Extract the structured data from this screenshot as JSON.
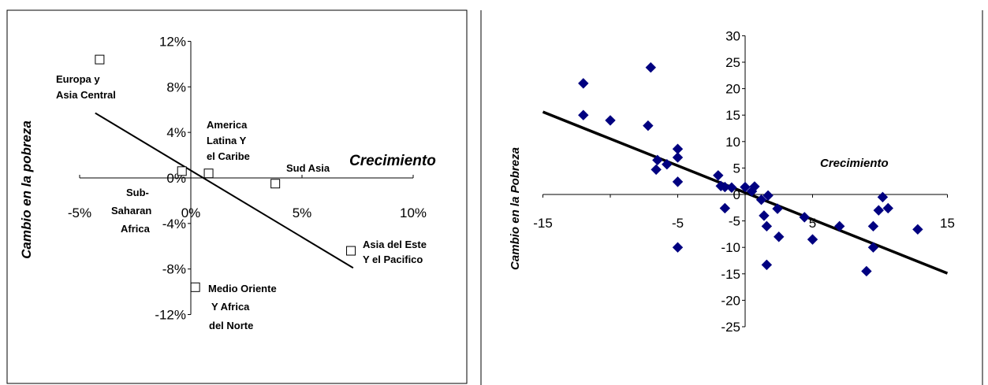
{
  "chart_data": [
    {
      "type": "scatter",
      "title": "",
      "xlabel": "Crecimiento",
      "ylabel": "Cambio en la pobreza",
      "xlim": [
        -5,
        10
      ],
      "ylim": [
        -12,
        12
      ],
      "x_ticks": [
        "-5%",
        "0%",
        "5%",
        "10%"
      ],
      "y_ticks": [
        "12%",
        "8%",
        "4%",
        "0%",
        "-4%",
        "-8%",
        "-12%"
      ],
      "points": [
        {
          "label": "Europa y Asia Central",
          "x": -4.1,
          "y": 10.4
        },
        {
          "label": "Sub-Saharan Africa",
          "x": -0.4,
          "y": 0.6
        },
        {
          "label": "America Latina Y el Caribe",
          "x": 0.8,
          "y": 0.4
        },
        {
          "label": "Sud Asia",
          "x": 3.8,
          "y": -0.5
        },
        {
          "label": "Asia del Este Y el Pacifico",
          "x": 7.2,
          "y": -6.4
        },
        {
          "label": "Medio Oriente Y Africa del Norte",
          "x": 0.2,
          "y": -9.6
        }
      ],
      "trendline": {
        "x": [
          -4.3,
          7.3
        ],
        "y": [
          5.7,
          -7.9
        ]
      }
    },
    {
      "type": "scatter",
      "title": "",
      "xlabel": "Crecimiento",
      "ylabel": "Cambio en la Pobreza",
      "xlim": [
        -15,
        15
      ],
      "ylim": [
        -25,
        30
      ],
      "x_ticks": [
        "-15",
        "-5",
        "5",
        "15"
      ],
      "y_ticks": [
        "30",
        "25",
        "20",
        "15",
        "10",
        "5",
        "0",
        "-5",
        "-10",
        "-15",
        "-20",
        "-25"
      ],
      "marker_color": "#000080",
      "points": [
        {
          "x": -12.0,
          "y": 21.0
        },
        {
          "x": -7.0,
          "y": 24.0
        },
        {
          "x": -12.0,
          "y": 15.0
        },
        {
          "x": -10.0,
          "y": 14.0
        },
        {
          "x": -7.2,
          "y": 13.0
        },
        {
          "x": -5.0,
          "y": 8.6
        },
        {
          "x": -5.0,
          "y": 7.0
        },
        {
          "x": -6.5,
          "y": 6.5
        },
        {
          "x": -5.8,
          "y": 5.7
        },
        {
          "x": -6.6,
          "y": 4.7
        },
        {
          "x": -5.0,
          "y": 2.4
        },
        {
          "x": -5.0,
          "y": -10.0
        },
        {
          "x": -2.0,
          "y": 3.6
        },
        {
          "x": -1.8,
          "y": 1.6
        },
        {
          "x": -1.5,
          "y": 1.4
        },
        {
          "x": -1.0,
          "y": 1.3
        },
        {
          "x": 0.0,
          "y": 1.4
        },
        {
          "x": 0.5,
          "y": 0.6
        },
        {
          "x": 0.7,
          "y": 1.5
        },
        {
          "x": 1.2,
          "y": -1.0
        },
        {
          "x": 1.7,
          "y": -0.2
        },
        {
          "x": -1.5,
          "y": -2.6
        },
        {
          "x": 1.4,
          "y": -4.0
        },
        {
          "x": 1.6,
          "y": -6.0
        },
        {
          "x": 2.4,
          "y": -2.7
        },
        {
          "x": 2.5,
          "y": -8.0
        },
        {
          "x": 1.6,
          "y": -13.3
        },
        {
          "x": 4.4,
          "y": -4.3
        },
        {
          "x": 5.0,
          "y": -8.5
        },
        {
          "x": 7.0,
          "y": -6.0
        },
        {
          "x": 9.5,
          "y": -6.0
        },
        {
          "x": 9.5,
          "y": -10.0
        },
        {
          "x": 9.0,
          "y": -14.5
        },
        {
          "x": 9.9,
          "y": -3.0
        },
        {
          "x": 10.6,
          "y": -2.6
        },
        {
          "x": 10.2,
          "y": -0.5
        },
        {
          "x": 12.8,
          "y": -6.6
        }
      ],
      "trendline": {
        "x": [
          -15,
          15
        ],
        "y": [
          15.6,
          -14.9
        ]
      }
    }
  ]
}
